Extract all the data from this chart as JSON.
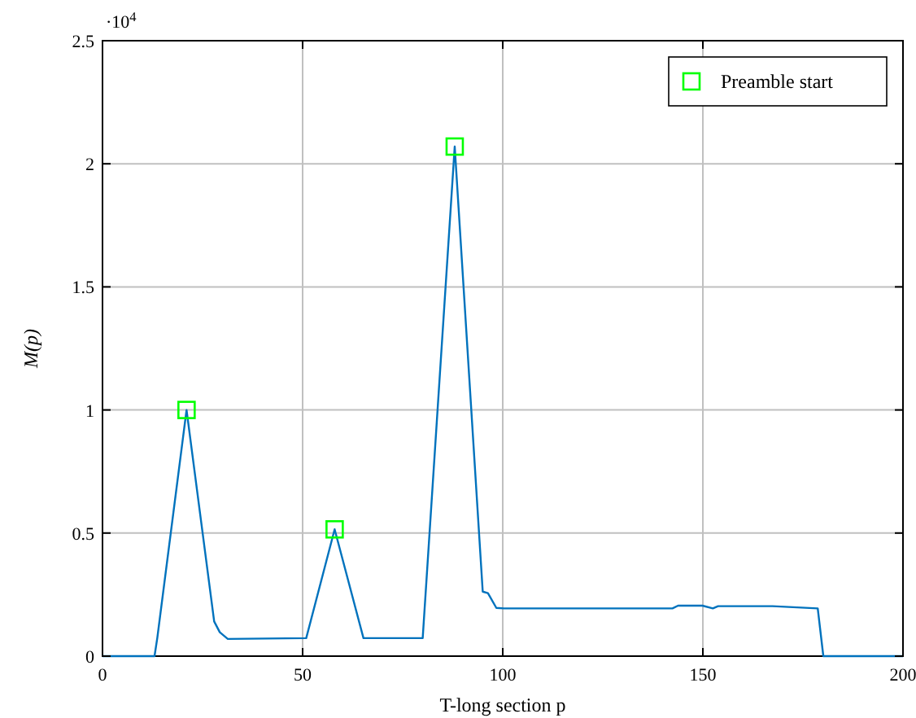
{
  "chart_data": {
    "type": "line",
    "xlabel": "T-long section p",
    "ylabel": "M(p)",
    "annotations": [
      "·10$^{4}$"
    ],
    "xlim": [
      0,
      200
    ],
    "xticks": [
      0,
      50,
      100,
      150,
      200
    ],
    "ylim": [
      0,
      2.5
    ],
    "yticks": [
      0,
      0.5,
      1,
      1.5,
      2,
      2.5
    ],
    "grid": true,
    "legend": "top right",
    "series": [
      {
        "color": "#0072bd",
        "marker": "none",
        "x": [
          0,
          13,
          13.7,
          21,
          27.9,
          29.3,
          31.3,
          50.9,
          58,
          65.2,
          80,
          88,
          95,
          96.3,
          98.4,
          100.3,
          142.4,
          143.8,
          149.9,
          152.5,
          153.8,
          167.4,
          178.7,
          180.1,
          200
        ],
        "values": [
          0,
          0,
          0.075,
          1,
          0.141,
          0.097,
          0.07,
          0.073,
          0.515,
          0.073,
          0.073,
          2.07,
          0.262,
          0.256,
          0.196,
          0.194,
          0.194,
          0.205,
          0.205,
          0.194,
          0.203,
          0.203,
          0.194,
          0,
          0
        ]
      },
      {
        "type": "scatter",
        "name": "Preamble start",
        "color": "#00ff00",
        "marker": "square",
        "x": [
          21,
          58,
          88
        ],
        "values": [
          1,
          0.515,
          2.07
        ]
      }
    ]
  }
}
